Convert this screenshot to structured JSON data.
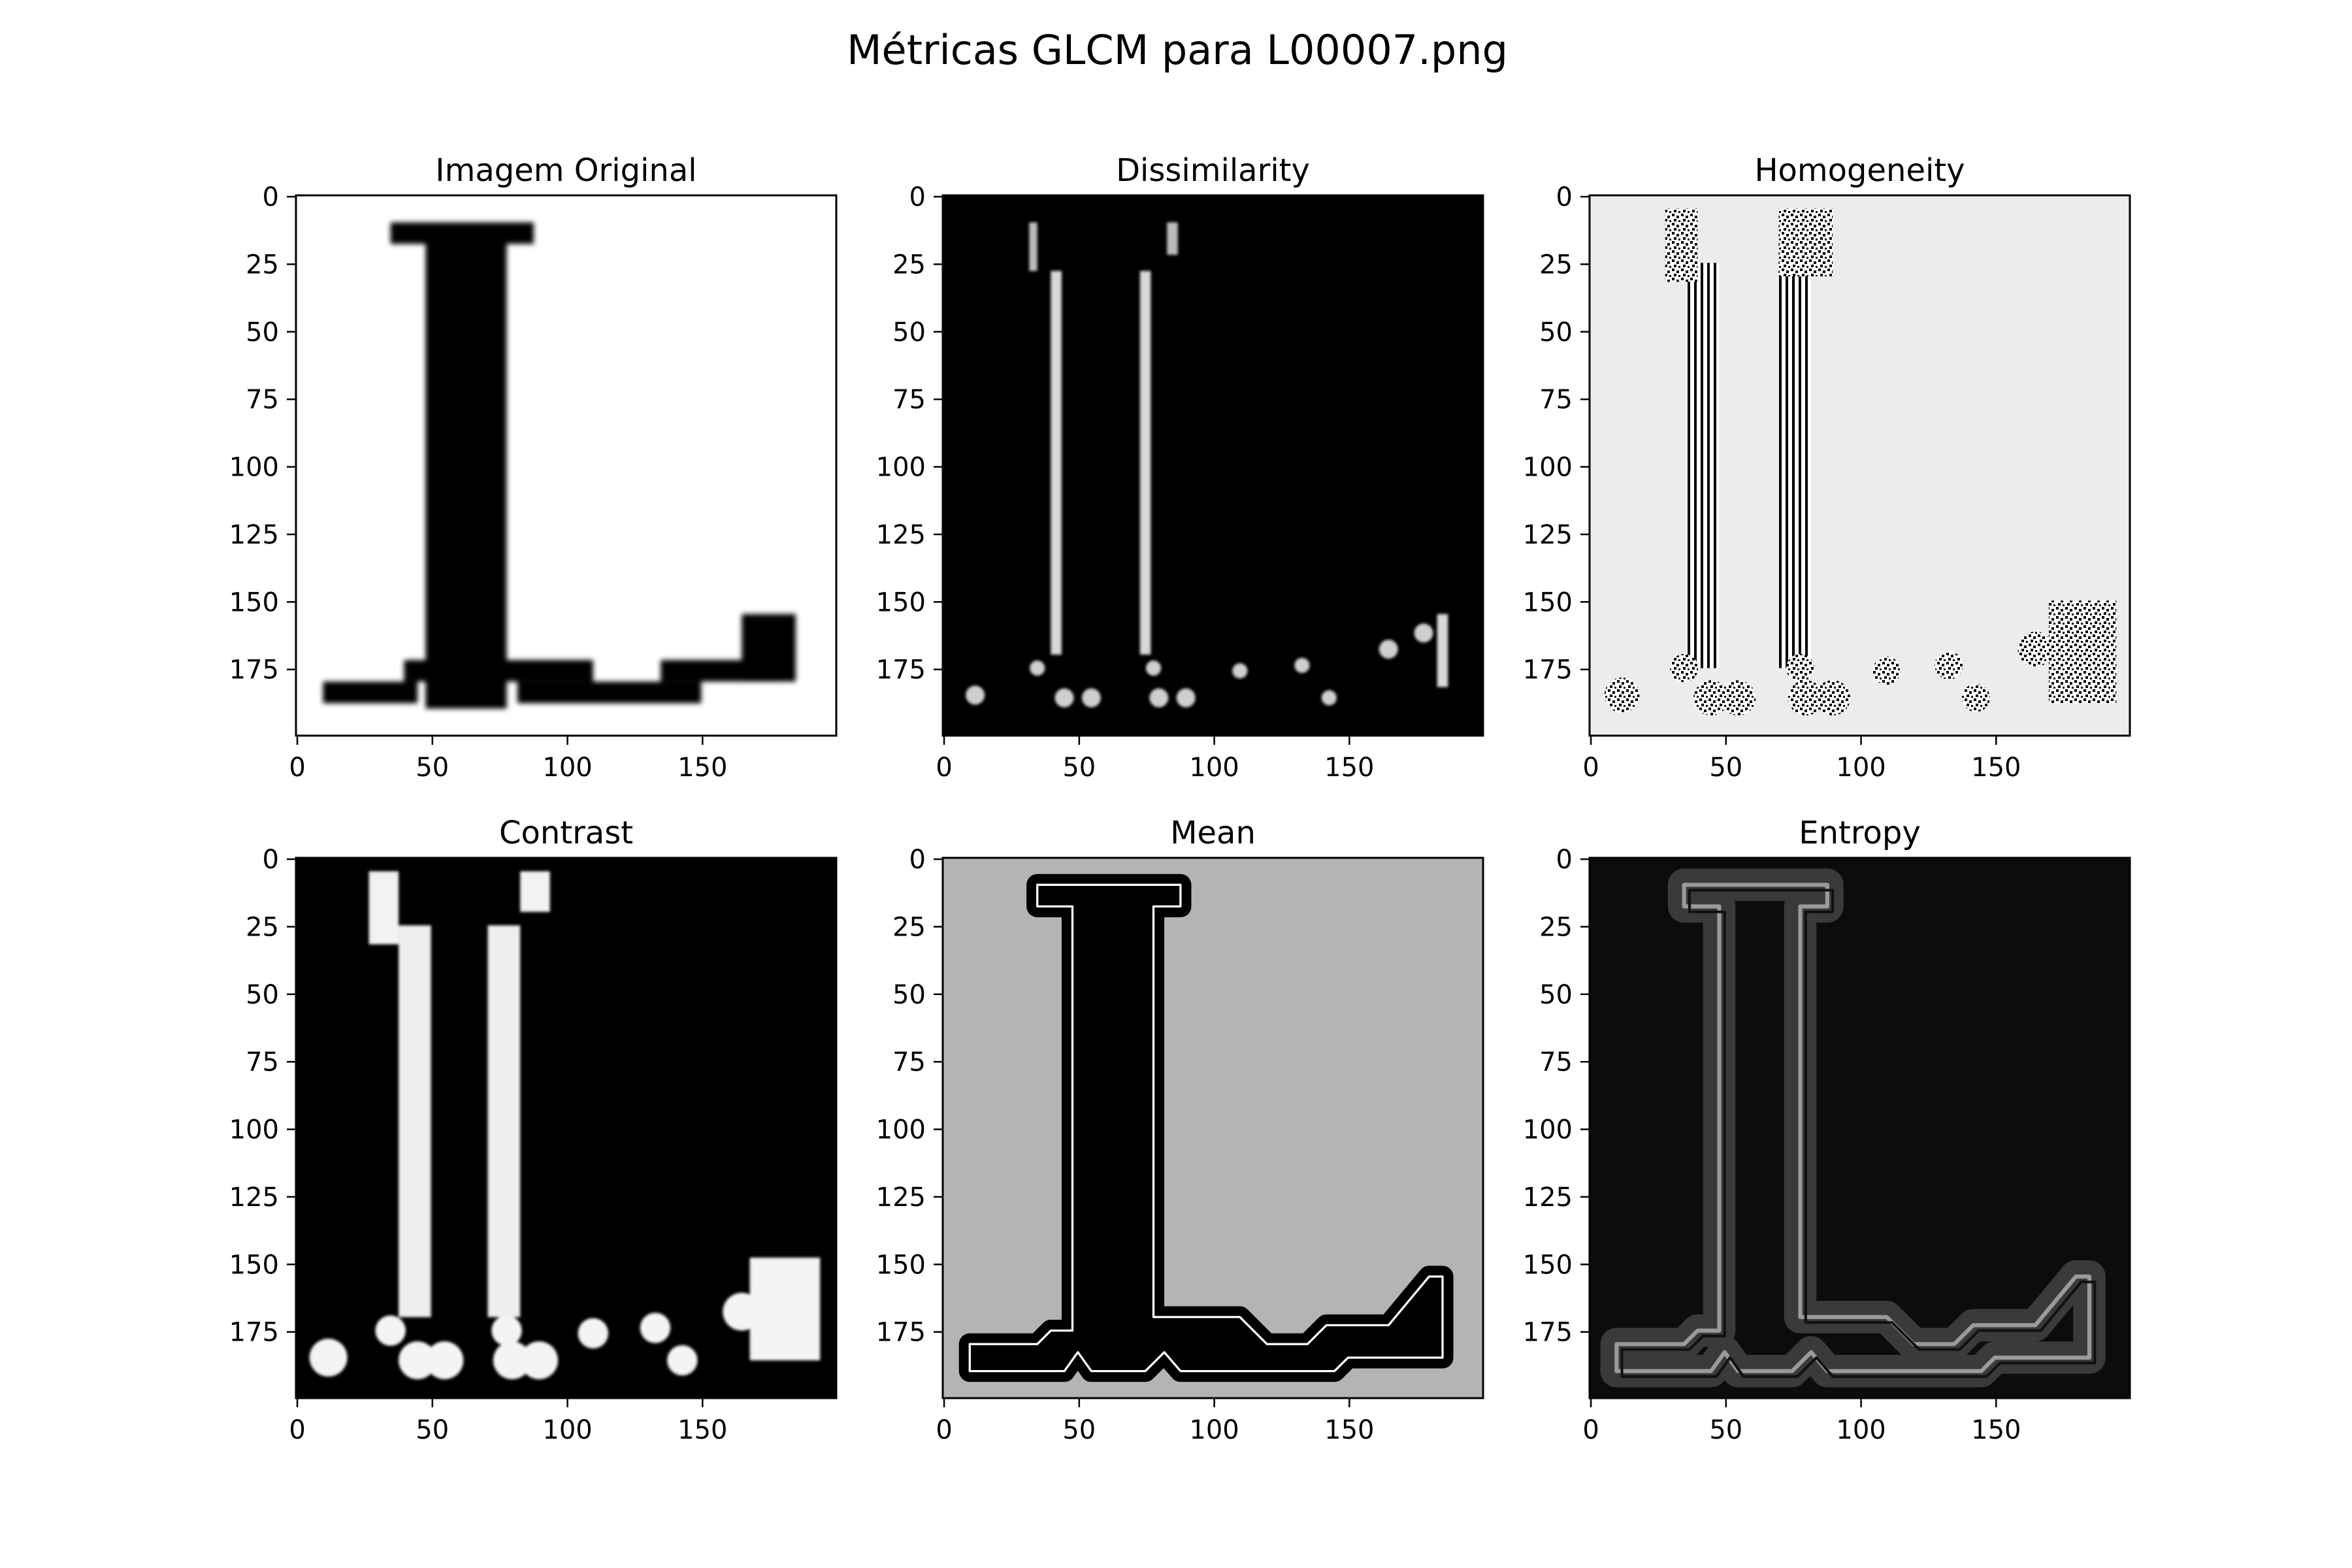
{
  "figure": {
    "title": "Métricas GLCM para L00007.png"
  },
  "chart_data": [
    {
      "type": "heatmap",
      "title": "Imagem Original",
      "image_shape": [
        200,
        200
      ],
      "colormap": "gray",
      "xlim": [
        0,
        199
      ],
      "ylim": [
        199,
        0
      ],
      "xticks": [
        0,
        50,
        100,
        150
      ],
      "yticks": [
        0,
        25,
        50,
        75,
        100,
        125,
        150,
        175
      ],
      "background": "#ffffff",
      "content": "black letter L on white background"
    },
    {
      "type": "heatmap",
      "title": "Dissimilarity",
      "image_shape": [
        200,
        200
      ],
      "colormap": "gray",
      "xlim": [
        0,
        199
      ],
      "ylim": [
        199,
        0
      ],
      "xticks": [
        0,
        50,
        100,
        150
      ],
      "yticks": [
        0,
        25,
        50,
        75,
        100,
        125,
        150,
        175
      ],
      "background": "#000000"
    },
    {
      "type": "heatmap",
      "title": "Homogeneity",
      "image_shape": [
        200,
        200
      ],
      "colormap": "gray",
      "xlim": [
        0,
        199
      ],
      "ylim": [
        199,
        0
      ],
      "xticks": [
        0,
        50,
        100,
        150
      ],
      "yticks": [
        0,
        25,
        50,
        75,
        100,
        125,
        150,
        175
      ],
      "background": "#ececec"
    },
    {
      "type": "heatmap",
      "title": "Contrast",
      "image_shape": [
        200,
        200
      ],
      "colormap": "gray",
      "xlim": [
        0,
        199
      ],
      "ylim": [
        199,
        0
      ],
      "xticks": [
        0,
        50,
        100,
        150
      ],
      "yticks": [
        0,
        25,
        50,
        75,
        100,
        125,
        150,
        175
      ],
      "background": "#000000"
    },
    {
      "type": "heatmap",
      "title": "Mean",
      "image_shape": [
        200,
        200
      ],
      "colormap": "gray",
      "xlim": [
        0,
        199
      ],
      "ylim": [
        199,
        0
      ],
      "xticks": [
        0,
        50,
        100,
        150
      ],
      "yticks": [
        0,
        25,
        50,
        75,
        100,
        125,
        150,
        175
      ],
      "background": "#b4b4b4"
    },
    {
      "type": "heatmap",
      "title": "Entropy",
      "image_shape": [
        200,
        200
      ],
      "colormap": "gray",
      "xlim": [
        0,
        199
      ],
      "ylim": [
        199,
        0
      ],
      "xticks": [
        0,
        50,
        100,
        150
      ],
      "yticks": [
        0,
        25,
        50,
        75,
        100,
        125,
        150,
        175
      ],
      "background": "#0c0c0c"
    }
  ]
}
